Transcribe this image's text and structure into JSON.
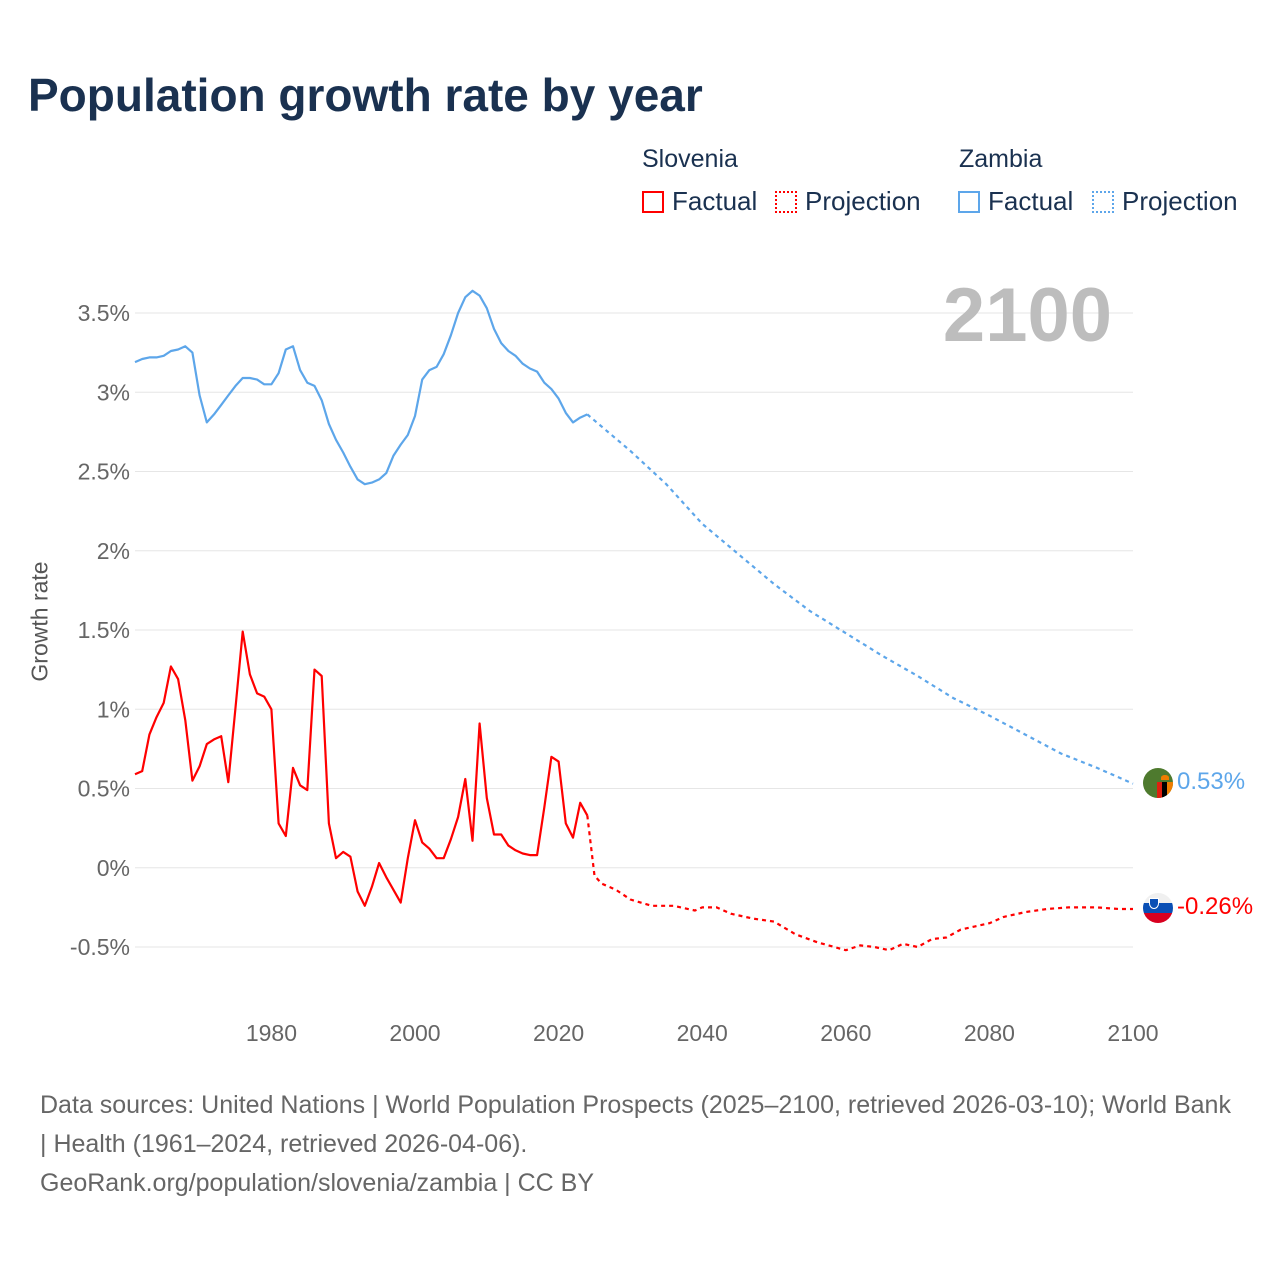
{
  "title": "Population growth rate by year",
  "legend": {
    "groups": [
      {
        "name": "Slovenia",
        "factual": "Factual",
        "projection": "Projection",
        "color": "#ff0000"
      },
      {
        "name": "Zambia",
        "factual": "Factual",
        "projection": "Projection",
        "color": "#5da6ea"
      }
    ]
  },
  "current_year": "2100",
  "end_labels": {
    "zambia": "0.53%",
    "slovenia": "-0.26%"
  },
  "footer": {
    "sources": "Data sources: United Nations | World Population Prospects (2025–2100, retrieved 2026-03-10); World Bank | Health (1961–2024, retrieved 2026-04-06).",
    "credit": "GeoRank.org/population/slovenia/zambia | CC BY"
  },
  "chart_data": {
    "type": "line",
    "title": "Population growth rate by year",
    "xlabel": "",
    "ylabel": "Growth rate",
    "xlim": [
      1961,
      2100
    ],
    "ylim": [
      -0.5,
      3.5
    ],
    "xticks": [
      1980,
      2000,
      2020,
      2040,
      2060,
      2080,
      2100
    ],
    "yticks": [
      {
        "v": -0.5,
        "l": "-0.5%"
      },
      {
        "v": 0,
        "l": "0%"
      },
      {
        "v": 0.5,
        "l": "0.5%"
      },
      {
        "v": 1,
        "l": "1%"
      },
      {
        "v": 1.5,
        "l": "1.5%"
      },
      {
        "v": 2,
        "l": "2%"
      },
      {
        "v": 2.5,
        "l": "2.5%"
      },
      {
        "v": 3,
        "l": "3%"
      },
      {
        "v": 3.5,
        "l": "3.5%"
      }
    ],
    "grid": true,
    "series": [
      {
        "name": "Slovenia Factual",
        "color": "#ff0000",
        "dashed": false,
        "start": 1961,
        "values": [
          0.59,
          0.61,
          0.84,
          0.95,
          1.04,
          1.27,
          1.19,
          0.93,
          0.55,
          0.64,
          0.78,
          0.81,
          0.83,
          0.54,
          1.01,
          1.49,
          1.22,
          1.1,
          1.08,
          1.0,
          0.28,
          0.2,
          0.63,
          0.52,
          0.49,
          1.25,
          1.21,
          0.28,
          0.06,
          0.1,
          0.07,
          -0.15,
          -0.24,
          -0.12,
          0.03,
          -0.06,
          -0.14,
          -0.22,
          0.06,
          0.3,
          0.16,
          0.12,
          0.06,
          0.06,
          0.18,
          0.32,
          0.56,
          0.17,
          0.91,
          0.44,
          0.21,
          0.21,
          0.14,
          0.11,
          0.09,
          0.08,
          0.08,
          0.38,
          0.7,
          0.67,
          0.28,
          0.19,
          0.41,
          0.33
        ]
      },
      {
        "name": "Slovenia Projection",
        "color": "#ff0000",
        "dashed": true,
        "points": [
          [
            2024,
            0.33
          ],
          [
            2025,
            -0.05
          ],
          [
            2026,
            -0.1
          ],
          [
            2028,
            -0.14
          ],
          [
            2030,
            -0.2
          ],
          [
            2033,
            -0.24
          ],
          [
            2036,
            -0.24
          ],
          [
            2039,
            -0.27
          ],
          [
            2040,
            -0.25
          ],
          [
            2042,
            -0.25
          ],
          [
            2044,
            -0.29
          ],
          [
            2047,
            -0.32
          ],
          [
            2050,
            -0.34
          ],
          [
            2053,
            -0.42
          ],
          [
            2056,
            -0.47
          ],
          [
            2060,
            -0.52
          ],
          [
            2062,
            -0.49
          ],
          [
            2064,
            -0.5
          ],
          [
            2066,
            -0.52
          ],
          [
            2068,
            -0.48
          ],
          [
            2070,
            -0.5
          ],
          [
            2072,
            -0.45
          ],
          [
            2074,
            -0.44
          ],
          [
            2076,
            -0.39
          ],
          [
            2078,
            -0.37
          ],
          [
            2080,
            -0.35
          ],
          [
            2082,
            -0.31
          ],
          [
            2085,
            -0.28
          ],
          [
            2088,
            -0.26
          ],
          [
            2091,
            -0.25
          ],
          [
            2095,
            -0.25
          ],
          [
            2098,
            -0.26
          ],
          [
            2100,
            -0.26
          ]
        ]
      },
      {
        "name": "Zambia Factual",
        "color": "#5da6ea",
        "dashed": false,
        "start": 1961,
        "values": [
          3.19,
          3.21,
          3.22,
          3.22,
          3.23,
          3.26,
          3.27,
          3.29,
          3.25,
          2.98,
          2.81,
          2.86,
          2.92,
          2.98,
          3.04,
          3.09,
          3.09,
          3.08,
          3.05,
          3.05,
          3.12,
          3.27,
          3.29,
          3.14,
          3.06,
          3.04,
          2.95,
          2.8,
          2.7,
          2.62,
          2.53,
          2.45,
          2.42,
          2.43,
          2.45,
          2.49,
          2.6,
          2.67,
          2.73,
          2.85,
          3.08,
          3.14,
          3.16,
          3.24,
          3.36,
          3.5,
          3.6,
          3.64,
          3.61,
          3.53,
          3.4,
          3.31,
          3.26,
          3.23,
          3.18,
          3.15,
          3.13,
          3.06,
          3.02,
          2.96,
          2.87,
          2.81,
          2.84,
          2.86
        ]
      },
      {
        "name": "Zambia Projection",
        "color": "#5da6ea",
        "dashed": true,
        "points": [
          [
            2024,
            2.86
          ],
          [
            2030,
            2.63
          ],
          [
            2035,
            2.42
          ],
          [
            2040,
            2.17
          ],
          [
            2045,
            1.98
          ],
          [
            2050,
            1.79
          ],
          [
            2055,
            1.62
          ],
          [
            2060,
            1.48
          ],
          [
            2065,
            1.34
          ],
          [
            2070,
            1.21
          ],
          [
            2075,
            1.07
          ],
          [
            2080,
            0.96
          ],
          [
            2085,
            0.84
          ],
          [
            2090,
            0.72
          ],
          [
            2095,
            0.63
          ],
          [
            2100,
            0.53
          ]
        ]
      }
    ]
  }
}
